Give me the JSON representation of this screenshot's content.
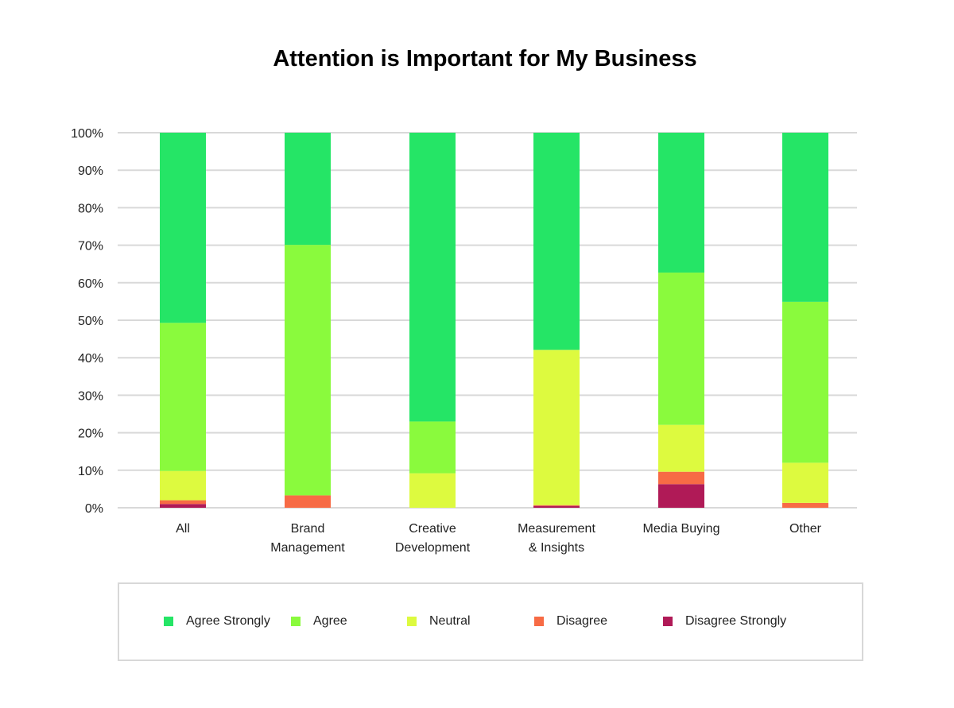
{
  "chart_data": {
    "type": "bar",
    "stacked": true,
    "title": "Attention is Important for My Business",
    "xlabel": "",
    "ylabel": "",
    "ylim": [
      0,
      100
    ],
    "yticks": [
      "0%",
      "10%",
      "20%",
      "30%",
      "40%",
      "50%",
      "60%",
      "70%",
      "80%",
      "90%",
      "100%"
    ],
    "grid": true,
    "legend_position": "bottom",
    "categories": [
      [
        "All"
      ],
      [
        "Brand",
        "Management"
      ],
      [
        "Creative",
        "Development"
      ],
      [
        "Measurement",
        "& Insights"
      ],
      [
        "Media Buying"
      ],
      [
        "Other"
      ]
    ],
    "series": [
      {
        "name": "Disagree Strongly",
        "color": "#b01a57",
        "values": [
          1.0,
          0,
          0,
          0.5,
          6.3,
          0
        ]
      },
      {
        "name": "Disagree",
        "color": "#f76b45",
        "values": [
          1.0,
          3.3,
          0,
          0.2,
          3.3,
          1.3
        ]
      },
      {
        "name": "Neutral",
        "color": "#ddfa3f",
        "values": [
          7.8,
          0,
          9.2,
          41.4,
          12.5,
          10.7
        ]
      },
      {
        "name": "Agree",
        "color": "#8afa3d",
        "values": [
          39.5,
          66.8,
          13.8,
          0,
          40.6,
          42.9
        ]
      },
      {
        "name": "Agree Strongly",
        "color": "#25e566",
        "values": [
          50.7,
          29.9,
          77.0,
          57.9,
          37.3,
          45.1
        ]
      }
    ],
    "legend_order": [
      "Agree Strongly",
      "Agree",
      "Neutral",
      "Disagree",
      "Disagree Strongly"
    ]
  }
}
